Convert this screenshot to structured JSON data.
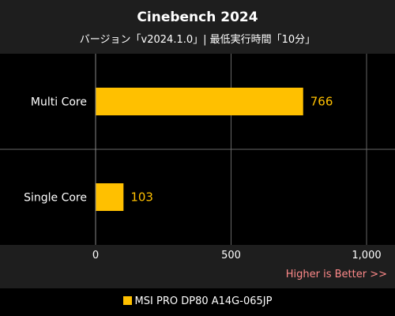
{
  "title": "Cinebench 2024",
  "subtitle": "バージョン「v2024.1.0」| 最低実行時間「10分」",
  "note": "Higher is Better >>",
  "colors": {
    "bar": "#ffc000",
    "value_label": "#ffc000",
    "note": "#ff8a8a",
    "panel": "#000000",
    "background": "#1e1e1e"
  },
  "chart_data": {
    "type": "bar",
    "orientation": "horizontal",
    "categories": [
      "Multi Core",
      "Single Core"
    ],
    "series": [
      {
        "name": "MSI PRO DP80 A14G-065JP",
        "values": [
          766,
          103
        ]
      }
    ],
    "xlim": [
      0,
      1000
    ],
    "xticks": [
      0,
      500,
      1000
    ],
    "xtick_labels": [
      "0",
      "500",
      "1,000"
    ],
    "grid": true,
    "legend_position": "bottom"
  }
}
